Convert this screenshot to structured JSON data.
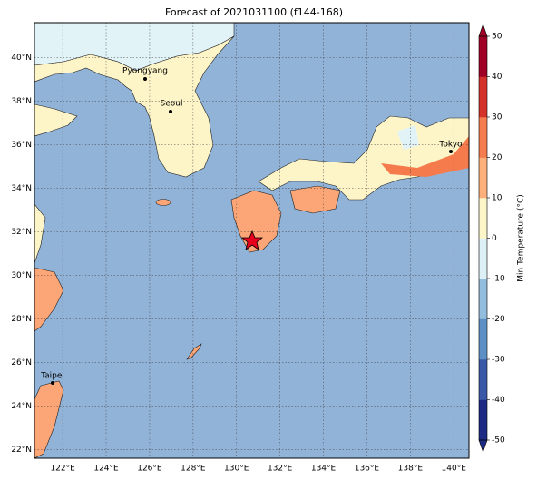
{
  "title": "Forecast of 2021031100 (f144-168)",
  "map": {
    "xlim": [
      120.7,
      140.7
    ],
    "ylim": [
      21.6,
      41.6
    ],
    "lat_ticks": [
      {
        "value": 22,
        "label": "22°N"
      },
      {
        "value": 24,
        "label": "24°N"
      },
      {
        "value": 26,
        "label": "26°N"
      },
      {
        "value": 28,
        "label": "28°N"
      },
      {
        "value": 30,
        "label": "30°N"
      },
      {
        "value": 32,
        "label": "32°N"
      },
      {
        "value": 34,
        "label": "34°N"
      },
      {
        "value": 36,
        "label": "36°N"
      },
      {
        "value": 38,
        "label": "38°N"
      },
      {
        "value": 40,
        "label": "40°N"
      }
    ],
    "lon_ticks": [
      {
        "value": 122,
        "label": "122°E"
      },
      {
        "value": 124,
        "label": "124°E"
      },
      {
        "value": 126,
        "label": "126°E"
      },
      {
        "value": 128,
        "label": "128°E"
      },
      {
        "value": 130,
        "label": "130°E"
      },
      {
        "value": 132,
        "label": "132°E"
      },
      {
        "value": 134,
        "label": "134°E"
      },
      {
        "value": 136,
        "label": "136°E"
      },
      {
        "value": 138,
        "label": "138°E"
      },
      {
        "value": 140,
        "label": "140°E"
      }
    ],
    "cities": [
      "Pyongyang",
      "Seoul",
      "Tokyo",
      "Taipei"
    ]
  },
  "colorbar": {
    "label": "Min Temperature (°C)",
    "lim": [
      -50,
      50
    ],
    "ticks": [
      -50,
      -40,
      -30,
      -20,
      -10,
      0,
      10,
      20,
      30,
      40,
      50
    ],
    "colors": [
      "#1c2a83",
      "#3a58a8",
      "#5d8fc5",
      "#93bddc",
      "#ddf0f6",
      "#fdf6c8",
      "#fdb07c",
      "#f57c4e",
      "#d3312a",
      "#a00026"
    ]
  }
}
